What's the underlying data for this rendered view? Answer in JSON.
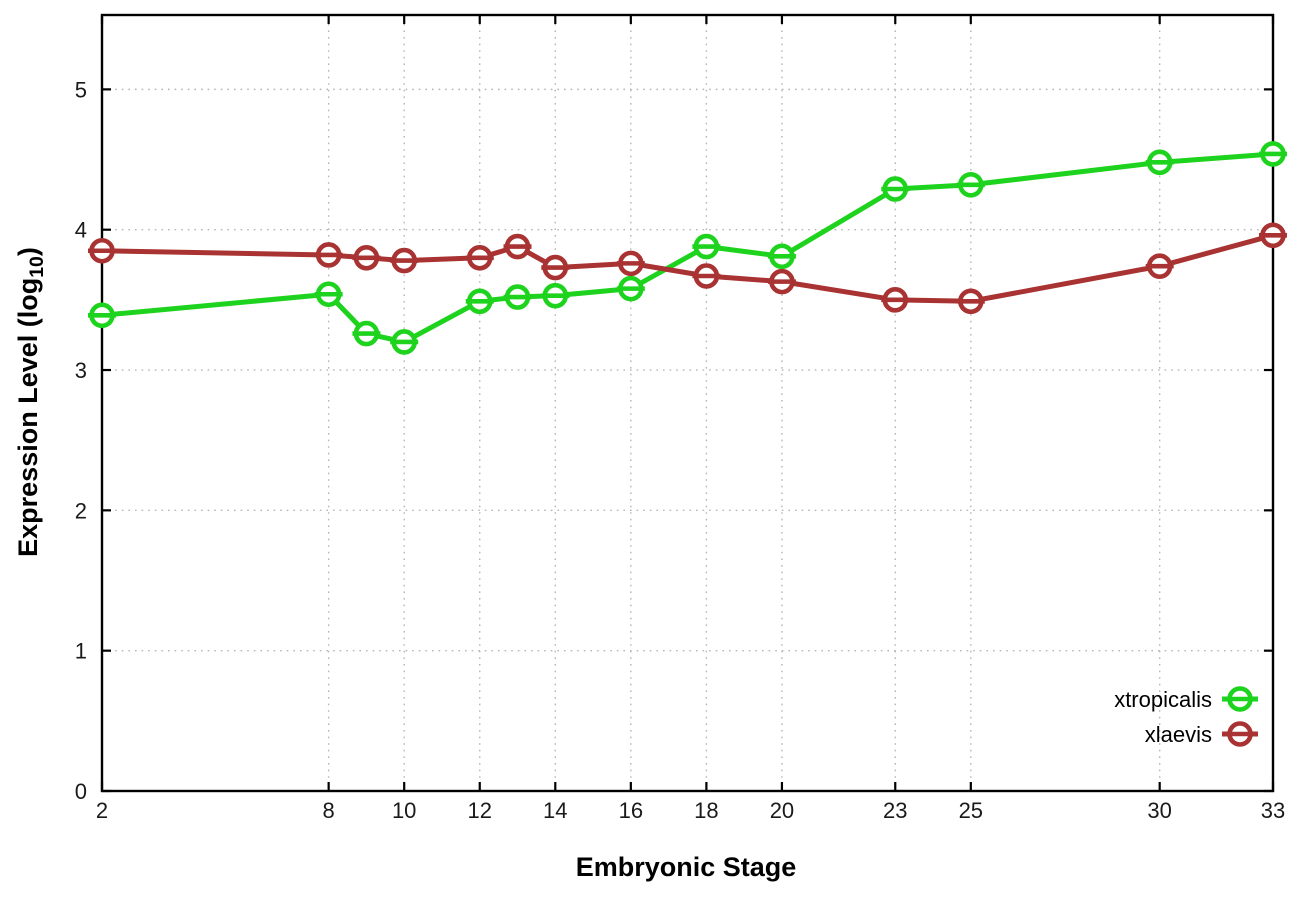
{
  "figure": {
    "xlabel": "Embryonic Stage",
    "ylabel_main": "Expression Level (log",
    "ylabel_sub": "10",
    "ylabel_end": ")"
  },
  "chart_data": {
    "type": "line",
    "title": "",
    "xlabel": "Embryonic Stage",
    "ylabel": "Expression Level (log10)",
    "x": [
      2,
      8,
      9,
      10,
      12,
      13,
      14,
      16,
      18,
      20,
      23,
      25,
      30,
      33
    ],
    "series": [
      {
        "name": "xtropicalis",
        "color": "#1ed31e",
        "values": [
          3.39,
          3.54,
          3.26,
          3.2,
          3.49,
          3.52,
          3.53,
          3.58,
          3.88,
          3.81,
          4.29,
          4.32,
          4.48,
          4.54
        ]
      },
      {
        "name": "xlaevis",
        "color": "#a93333",
        "values": [
          3.85,
          3.82,
          3.8,
          3.78,
          3.8,
          3.88,
          3.73,
          3.76,
          3.67,
          3.63,
          3.5,
          3.49,
          3.74,
          3.96
        ]
      }
    ],
    "xlim": [
      2,
      33
    ],
    "ylim": [
      0,
      5.53
    ],
    "xticks": [
      2,
      8,
      10,
      12,
      14,
      16,
      18,
      20,
      23,
      25,
      30,
      33
    ],
    "yticks": [
      0,
      1,
      2,
      3,
      4,
      5
    ],
    "grid": true,
    "grid_style": "dotted",
    "grid_color": "#b5b5b5",
    "marker": "open-circle-with-dash",
    "legend_position": "inside-right",
    "legend_entries": [
      "xtropicalis",
      "xlaevis"
    ],
    "border_color": "#000000",
    "tick_label_color": "#1a1a1a"
  }
}
